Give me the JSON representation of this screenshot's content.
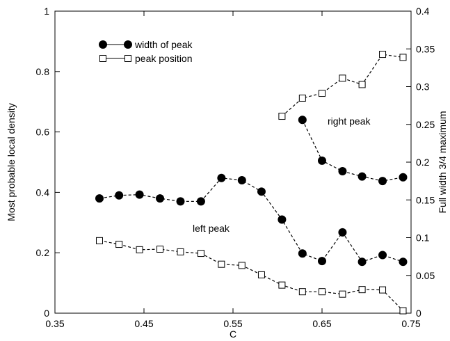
{
  "chart_data": {
    "type": "scatter",
    "xlabel": "C",
    "ylabel_left": "Most probable local density",
    "ylabel_right": "Full width 3/4 maximum",
    "xlim": [
      0.35,
      0.75
    ],
    "ylim_left": [
      0,
      1
    ],
    "ylim_right": [
      0,
      0.4
    ],
    "x_ticks": [
      "0.35",
      "0.45",
      "0.55",
      "0.65",
      "0.75"
    ],
    "x_tick_values": [
      0.35,
      0.45,
      0.55,
      0.65,
      0.75
    ],
    "y_left_ticks": [
      "0",
      "0.2",
      "0.4",
      "0.6",
      "0.8",
      "1"
    ],
    "y_left_tick_values": [
      0,
      0.2,
      0.4,
      0.6,
      0.8,
      1.0
    ],
    "y_right_ticks": [
      "0",
      "0.05",
      "0.1",
      "0.15",
      "0.2",
      "0.25",
      "0.3",
      "0.35",
      "0.4"
    ],
    "y_right_tick_values": [
      0,
      0.05,
      0.1,
      0.15,
      0.2,
      0.25,
      0.3,
      0.35,
      0.4
    ],
    "grid": false,
    "legend_position": "top-left",
    "legend": [
      {
        "label": "width of peak",
        "marker": "filled-circle"
      },
      {
        "label": "peak position",
        "marker": "open-square"
      }
    ],
    "annotations": [
      "right peak",
      "left peak"
    ],
    "series": [
      {
        "marker": "filled-circle",
        "axis": "right",
        "segments": [
          {
            "x": [
              0.4,
              0.422,
              0.445,
              0.468,
              0.491,
              0.514,
              0.537,
              0.56,
              0.582,
              0.605,
              0.628,
              0.65,
              0.673,
              0.695,
              0.718,
              0.741
            ],
            "y": [
              0.152,
              0.156,
              0.157,
              0.152,
              0.148,
              0.148,
              0.179,
              0.176,
              0.161,
              0.124,
              0.079,
              0.069,
              0.107,
              0.068,
              0.077,
              0.068
            ]
          },
          {
            "x": [
              0.628,
              0.65,
              0.673,
              0.695,
              0.718,
              0.741
            ],
            "y": [
              0.256,
              0.202,
              0.188,
              0.181,
              0.175,
              0.18
            ]
          }
        ]
      },
      {
        "marker": "open-square",
        "axis": "left",
        "segments": [
          {
            "x": [
              0.4,
              0.422,
              0.445,
              0.468,
              0.491,
              0.514,
              0.537,
              0.56,
              0.582,
              0.605,
              0.628,
              0.65,
              0.673,
              0.695,
              0.718,
              0.741
            ],
            "y": [
              0.24,
              0.228,
              0.21,
              0.212,
              0.203,
              0.198,
              0.162,
              0.158,
              0.127,
              0.093,
              0.071,
              0.071,
              0.063,
              0.078,
              0.077,
              0.008
            ]
          },
          {
            "x": [
              0.605,
              0.628,
              0.65,
              0.673,
              0.695,
              0.718,
              0.741
            ],
            "y": [
              0.652,
              0.712,
              0.728,
              0.778,
              0.757,
              0.857,
              0.847
            ]
          }
        ]
      }
    ]
  }
}
